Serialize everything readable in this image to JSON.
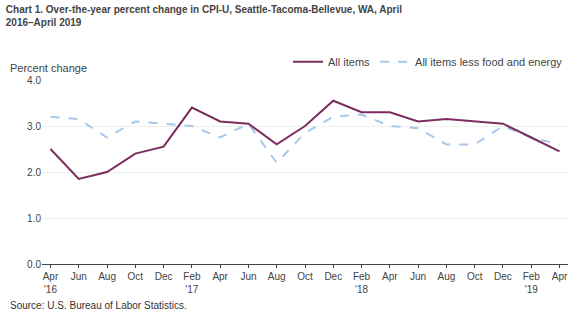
{
  "chart_data": {
    "type": "line",
    "title": "Chart 1. Over-the-year percent change in CPI-U, Seattle-Tacoma-Bellevue, WA, April\n2016–April 2019",
    "ylabel": "Percent change",
    "annotations": [
      "Source: U.S. Bureau of Labor Statistics."
    ],
    "categories": [
      "Apr\n'16",
      "Jun",
      "Aug",
      "Oct",
      "Dec",
      "Feb\n'17",
      "Apr",
      "Jun",
      "Aug",
      "Oct",
      "Dec",
      "Feb\n'18",
      "Apr",
      "Jun",
      "Aug",
      "Oct",
      "Dec",
      "Feb\n'19",
      "Apr"
    ],
    "series": [
      {
        "name": "All items",
        "color": "#7b2d5e",
        "line_style": "solid",
        "values": [
          2.5,
          1.85,
          2.0,
          2.4,
          2.55,
          3.4,
          3.1,
          3.05,
          2.6,
          3.0,
          3.55,
          3.3,
          3.3,
          3.1,
          3.15,
          3.1,
          3.05,
          2.75,
          2.45
        ]
      },
      {
        "name": "All items less food and energy",
        "color": "#a8c8e8",
        "line_style": "dashed",
        "values": [
          3.2,
          3.15,
          2.75,
          3.1,
          3.05,
          3.0,
          2.75,
          3.05,
          2.2,
          2.85,
          3.2,
          3.25,
          3.0,
          2.95,
          2.6,
          2.6,
          3.0,
          2.75,
          2.6
        ]
      }
    ],
    "ylim": [
      0.0,
      4.0
    ],
    "yticks": [
      {
        "value": 0,
        "label": "0.0"
      },
      {
        "value": 1,
        "label": "1.0"
      },
      {
        "value": 2,
        "label": "2.0"
      },
      {
        "value": 3,
        "label": "3.0"
      },
      {
        "value": 4,
        "label": "4.0"
      }
    ],
    "grid": true,
    "legend": "upper right"
  }
}
